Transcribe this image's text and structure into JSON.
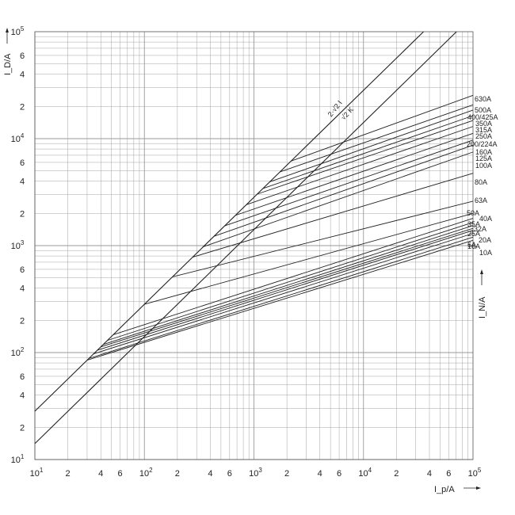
{
  "chart_data": {
    "type": "line",
    "title": "",
    "xlabel": "I_p/A",
    "ylabel": "I_D/A",
    "right_label": "I_N/A",
    "x_scale": "log",
    "y_scale": "log",
    "xlim": [
      10,
      100000
    ],
    "ylim": [
      10,
      100000
    ],
    "grid": true,
    "x_ticks": [
      {
        "value": 10,
        "base": "10",
        "exp": "1"
      },
      {
        "value": 20,
        "base": "2",
        "exp": ""
      },
      {
        "value": 40,
        "base": "4",
        "exp": ""
      },
      {
        "value": 60,
        "base": "6",
        "exp": ""
      },
      {
        "value": 100,
        "base": "10",
        "exp": "2"
      },
      {
        "value": 200,
        "base": "2",
        "exp": ""
      },
      {
        "value": 400,
        "base": "4",
        "exp": ""
      },
      {
        "value": 600,
        "base": "6",
        "exp": ""
      },
      {
        "value": 1000,
        "base": "10",
        "exp": "3"
      },
      {
        "value": 2000,
        "base": "2",
        "exp": ""
      },
      {
        "value": 4000,
        "base": "4",
        "exp": ""
      },
      {
        "value": 6000,
        "base": "6",
        "exp": ""
      },
      {
        "value": 10000,
        "base": "10",
        "exp": "4"
      },
      {
        "value": 20000,
        "base": "2",
        "exp": ""
      },
      {
        "value": 40000,
        "base": "4",
        "exp": ""
      },
      {
        "value": 60000,
        "base": "6",
        "exp": ""
      },
      {
        "value": 100000,
        "base": "10",
        "exp": "5"
      }
    ],
    "y_ticks": [
      {
        "value": 10,
        "base": "10",
        "exp": "1"
      },
      {
        "value": 20,
        "base": "2",
        "exp": ""
      },
      {
        "value": 40,
        "base": "4",
        "exp": ""
      },
      {
        "value": 60,
        "base": "6",
        "exp": ""
      },
      {
        "value": 100,
        "base": "10",
        "exp": "2"
      },
      {
        "value": 200,
        "base": "2",
        "exp": ""
      },
      {
        "value": 400,
        "base": "4",
        "exp": ""
      },
      {
        "value": 600,
        "base": "6",
        "exp": ""
      },
      {
        "value": 1000,
        "base": "10",
        "exp": "3"
      },
      {
        "value": 2000,
        "base": "2",
        "exp": ""
      },
      {
        "value": 4000,
        "base": "4",
        "exp": ""
      },
      {
        "value": 6000,
        "base": "6",
        "exp": ""
      },
      {
        "value": 10000,
        "base": "10",
        "exp": "4"
      },
      {
        "value": 20000,
        "base": "2",
        "exp": ""
      },
      {
        "value": 40000,
        "base": "4",
        "exp": ""
      },
      {
        "value": 60000,
        "base": "6",
        "exp": ""
      },
      {
        "value": 100000,
        "base": "10",
        "exp": "5"
      }
    ],
    "reference_lines": [
      {
        "name": "2·√2 I",
        "points": [
          [
            10,
            28.3
          ],
          [
            35350,
            100000
          ]
        ]
      },
      {
        "name": "√2 K",
        "points": [
          [
            10,
            14.1
          ],
          [
            70700,
            100000
          ]
        ]
      }
    ],
    "series": [
      {
        "name": "630A",
        "points": [
          [
            2180,
            6170
          ],
          [
            100000,
            25400
          ]
        ]
      },
      {
        "name": "500A",
        "points": [
          [
            1730,
            4890
          ],
          [
            100000,
            20700
          ]
        ]
      },
      {
        "name": "400/425A",
        "points": [
          [
            1390,
            3940
          ],
          [
            100000,
            18500
          ]
        ]
      },
      {
        "name": "350A",
        "points": [
          [
            1200,
            3410
          ],
          [
            100000,
            16400
          ]
        ]
      },
      {
        "name": "315A",
        "points": [
          [
            1070,
            3030
          ],
          [
            100000,
            14800
          ]
        ]
      },
      {
        "name": "250A",
        "points": [
          [
            850,
            2410
          ],
          [
            100000,
            13000
          ]
        ]
      },
      {
        "name": "200/224A",
        "points": [
          [
            680,
            1920
          ],
          [
            100000,
            11200
          ]
        ]
      },
      {
        "name": "160A",
        "points": [
          [
            540,
            1530
          ],
          [
            100000,
            9700
          ]
        ]
      },
      {
        "name": "125A",
        "points": [
          [
            430,
            1220
          ],
          [
            100000,
            8700
          ]
        ]
      },
      {
        "name": "100A",
        "points": [
          [
            345,
            975
          ],
          [
            100000,
            7500
          ]
        ]
      },
      {
        "name": "80A",
        "points": [
          [
            275,
            780
          ],
          [
            100000,
            4750
          ]
        ]
      },
      {
        "name": "63A",
        "points": [
          [
            180,
            510
          ],
          [
            100000,
            2600
          ]
        ]
      },
      {
        "name": "50A",
        "points": [
          [
            100,
            283
          ],
          [
            100000,
            2000
          ]
        ]
      },
      {
        "name": "40A",
        "points": [
          [
            52,
            147
          ],
          [
            100000,
            1800
          ]
        ]
      },
      {
        "name": "35A",
        "points": [
          [
            46,
            130
          ],
          [
            100000,
            1650
          ]
        ]
      },
      {
        "name": "32A",
        "points": [
          [
            42,
            119
          ],
          [
            100000,
            1540
          ]
        ]
      },
      {
        "name": "25A",
        "points": [
          [
            40,
            113
          ],
          [
            100000,
            1450
          ]
        ]
      },
      {
        "name": "20A",
        "points": [
          [
            37,
            105
          ],
          [
            100000,
            1390
          ]
        ]
      },
      {
        "name": "16A",
        "points": [
          [
            34,
            97
          ],
          [
            100000,
            1300
          ]
        ]
      },
      {
        "name": "10A",
        "points": [
          [
            31,
            88
          ],
          [
            100000,
            1200
          ]
        ]
      },
      {
        "name": "6A",
        "points": [
          [
            30,
            85
          ],
          [
            100000,
            1120
          ]
        ]
      }
    ],
    "curve_labels": [
      "630A",
      "500A",
      "400/425A",
      "350A",
      "315A",
      "250A",
      "200/224A",
      "160A",
      "125A",
      "100A",
      "80A",
      "63A",
      "50A",
      "40A",
      "35A",
      "32A",
      "25A",
      "20A",
      "16A",
      "10A",
      "6A"
    ],
    "colors": {
      "line": "#222222",
      "grid": "#9a9a9a",
      "frame": "#555555"
    }
  }
}
